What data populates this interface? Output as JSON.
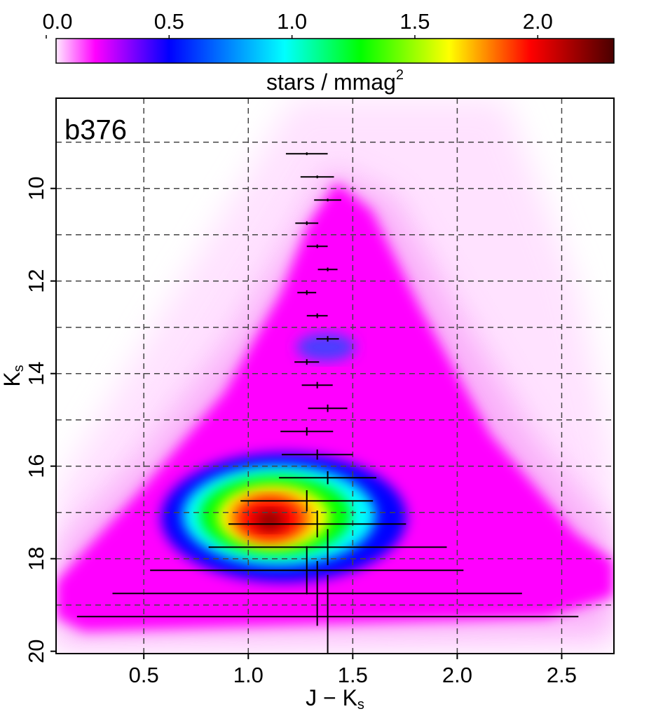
{
  "chart_data": {
    "type": "errorbar",
    "panel_label": "b376",
    "xlabel": "J − K",
    "xlabel_sub": "s",
    "ylabel": "K",
    "ylabel_sub": "s",
    "xlim": [
      0.08,
      2.75
    ],
    "ylim": [
      8.05,
      20.05
    ],
    "y_inverted": true,
    "xticks": [
      {
        "value": 0.5,
        "label": "0.5"
      },
      {
        "value": 1,
        "label": "1.0"
      },
      {
        "value": 1.5,
        "label": "1.5"
      },
      {
        "value": 2,
        "label": "2.0"
      },
      {
        "value": 2.5,
        "label": "2.5"
      }
    ],
    "yticks": [
      10,
      12,
      14,
      16,
      18,
      20
    ],
    "ygrid": [
      9,
      10,
      11,
      12,
      13,
      14,
      15,
      16,
      17,
      18,
      19
    ],
    "grid": true,
    "errorbar_color": "#000000",
    "errorbars": {
      "x": [
        1.28,
        1.33,
        1.38,
        1.28,
        1.33,
        1.38,
        1.28,
        1.33,
        1.38,
        1.28,
        1.33,
        1.38,
        1.28,
        1.33,
        1.38,
        1.28,
        1.33,
        1.38,
        1.28,
        1.33,
        1.38
      ],
      "y": [
        9.25,
        9.75,
        10.25,
        10.75,
        11.25,
        11.75,
        12.25,
        12.75,
        13.25,
        13.75,
        14.25,
        14.75,
        15.25,
        15.75,
        16.25,
        16.75,
        17.25,
        17.75,
        18.25,
        18.75,
        19.25
      ],
      "xerr": [
        0.1,
        0.08,
        0.065,
        0.055,
        0.05,
        0.047,
        0.045,
        0.05,
        0.054,
        0.059,
        0.074,
        0.094,
        0.126,
        0.17,
        0.233,
        0.317,
        0.425,
        0.57,
        0.75,
        0.98,
        1.2
      ],
      "yerr": [
        0.03,
        0.03,
        0.03,
        0.04,
        0.04,
        0.04,
        0.05,
        0.05,
        0.06,
        0.06,
        0.07,
        0.08,
        0.09,
        0.11,
        0.14,
        0.23,
        0.29,
        0.39,
        0.52,
        0.7,
        0.9
      ]
    },
    "colorbar": {
      "label": "stars / mmag",
      "label_sup": "2",
      "lim": [
        0.04,
        2.31
      ],
      "ticks": [
        {
          "value": 0,
          "label": "0.0"
        },
        {
          "value": 0.5,
          "label": "0.5"
        },
        {
          "value": 1,
          "label": "1.0"
        },
        {
          "value": 1.5,
          "label": "1.5"
        },
        {
          "value": 2,
          "label": "2.0"
        }
      ],
      "colormap": [
        {
          "value": 0.04,
          "color": "#ffe8ff"
        },
        {
          "value": 0.2,
          "color": "#ff00ff"
        },
        {
          "value": 0.5,
          "color": "#0000ff"
        },
        {
          "value": 0.97,
          "color": "#00ffff"
        },
        {
          "value": 1.28,
          "color": "#00ff00"
        },
        {
          "value": 1.64,
          "color": "#ffff00"
        },
        {
          "value": 1.97,
          "color": "#ff0000"
        },
        {
          "value": 2.31,
          "color": "#4a0000"
        }
      ]
    }
  }
}
